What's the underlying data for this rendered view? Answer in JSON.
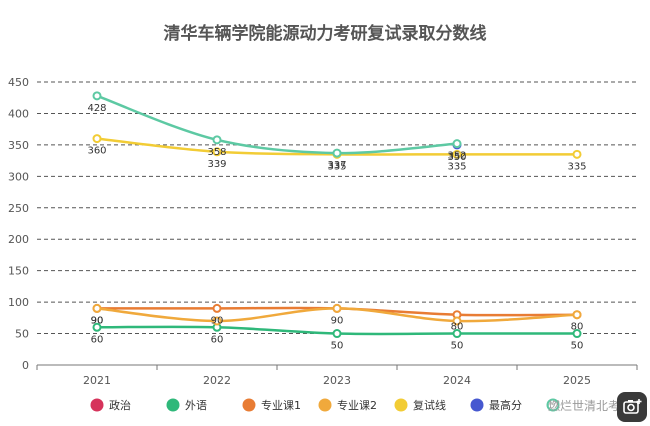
{
  "chart_data": {
    "type": "line",
    "title": "清华车辆学院能源动力考研复试录取分数线",
    "categories": [
      "2021",
      "2022",
      "2023",
      "2024",
      "2025"
    ],
    "ylim": [
      0,
      450
    ],
    "yticks": [
      0,
      50,
      100,
      150,
      200,
      250,
      300,
      350,
      400,
      450
    ],
    "grid": "horizontal-dashed",
    "legend_placement": "bottom",
    "series": [
      {
        "name": "政治",
        "color": "#d6335b",
        "values": [
          null,
          null,
          null,
          null,
          null
        ],
        "labels": [
          null,
          null,
          null,
          null,
          null
        ]
      },
      {
        "name": "外语",
        "color": "#2fb87a",
        "values": [
          60,
          60,
          50,
          50,
          50
        ],
        "labels": [
          "60",
          "60",
          "50",
          "50",
          "50"
        ]
      },
      {
        "name": "专业课1",
        "color": "#e87c34",
        "values": [
          90,
          90,
          90,
          80,
          80
        ],
        "labels": [
          "90",
          "90",
          "90",
          "80",
          "80"
        ]
      },
      {
        "name": "专业课2",
        "color": "#f0a93c",
        "values": [
          90,
          70,
          90,
          70,
          80
        ],
        "labels": [
          "90",
          null,
          null,
          null,
          null
        ]
      },
      {
        "name": "复试线",
        "color": "#f2cc35",
        "values": [
          360,
          339,
          335,
          335,
          335
        ],
        "labels": [
          "360",
          "339",
          "335",
          "335",
          "335"
        ]
      },
      {
        "name": "最高分",
        "color": "#4658d0",
        "values": [
          null,
          null,
          null,
          350,
          null
        ],
        "labels": [
          null,
          null,
          null,
          "350",
          null
        ]
      },
      {
        "name": "",
        "color": "#5dc9a3",
        "values": [
          428,
          358,
          337,
          352,
          null
        ],
        "labels": [
          "428",
          "358",
          "337",
          "352",
          null
        ]
      }
    ]
  },
  "watermark": "燃烂世清北考研",
  "icons": {
    "camera": "camera-add-icon"
  }
}
